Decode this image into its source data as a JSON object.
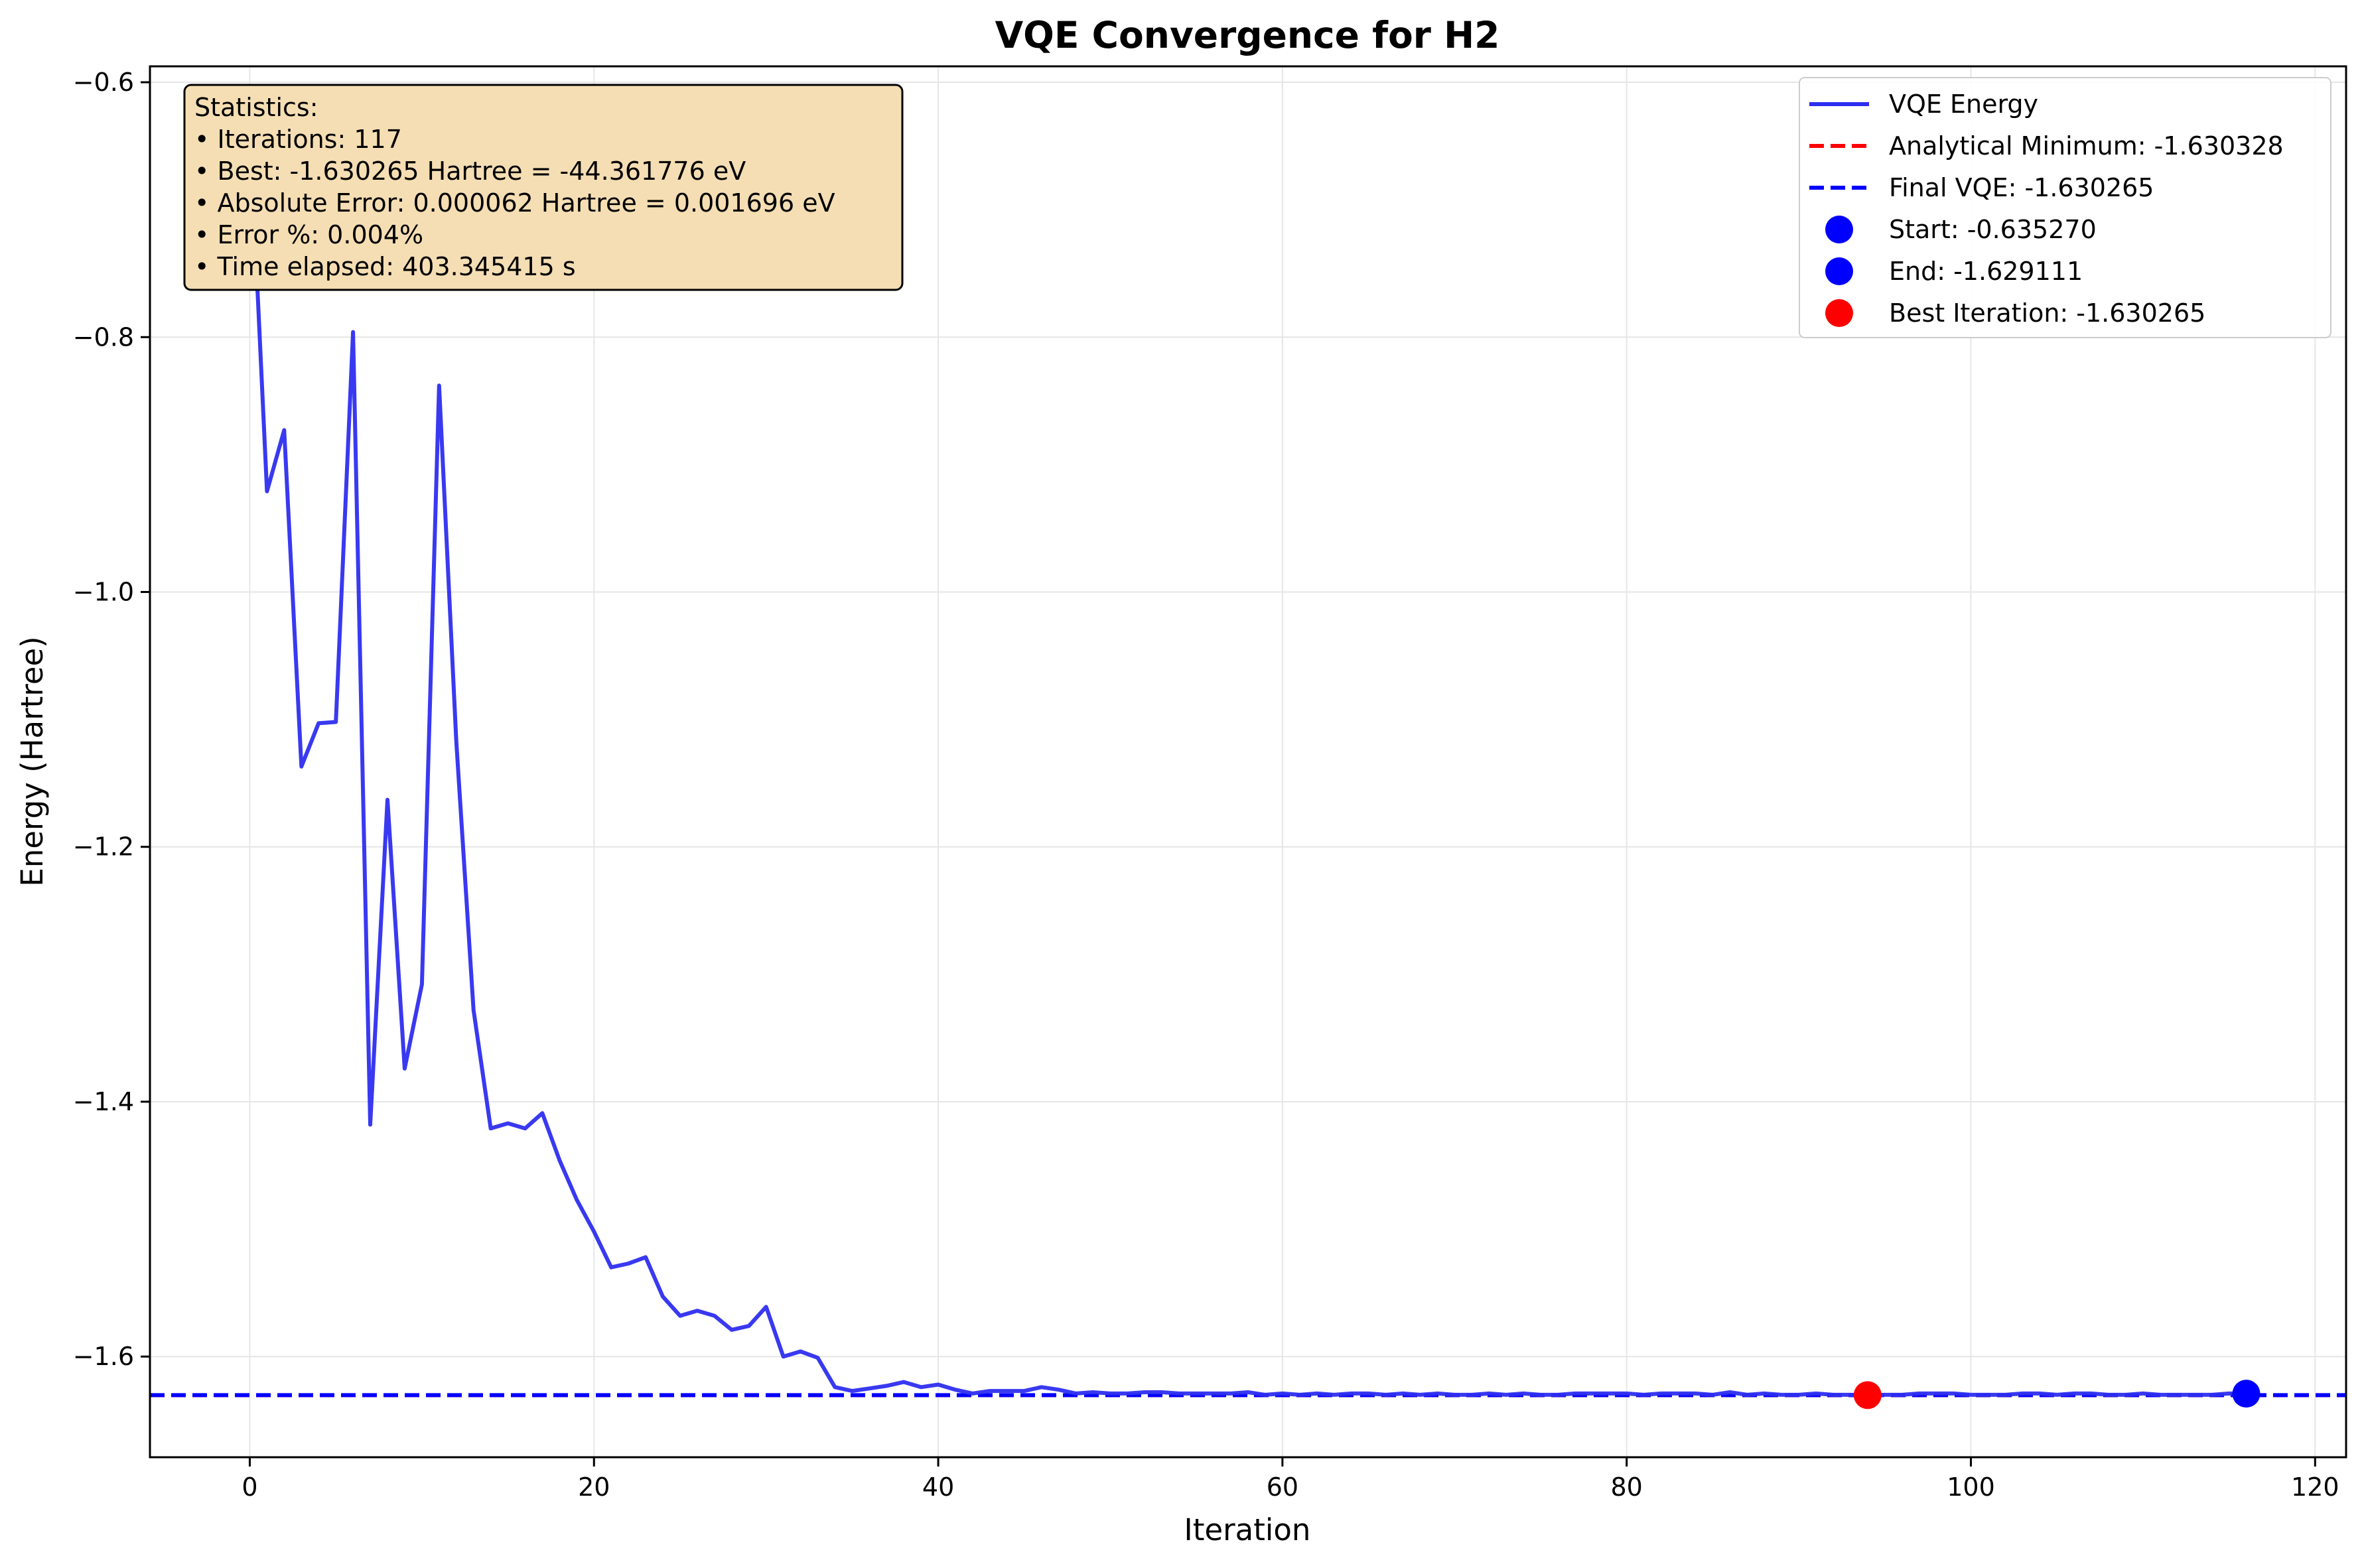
{
  "chart_data": {
    "type": "line",
    "title": "VQE Convergence for H2",
    "xlabel": "Iteration",
    "ylabel": "Energy (Hartree)",
    "xlim": [
      -5.8,
      121.8
    ],
    "ylim": [
      -1.679,
      -0.5875
    ],
    "xticks": [
      0,
      20,
      40,
      60,
      80,
      100,
      120
    ],
    "yticks": [
      -1.6,
      -1.4,
      -1.2,
      -1.0,
      -0.8,
      -0.6
    ],
    "xtick_labels": [
      "0",
      "20",
      "40",
      "60",
      "80",
      "100",
      "120"
    ],
    "ytick_labels": [
      "−1.6",
      "−1.4",
      "−1.2",
      "−1.0",
      "−0.8",
      "−0.6"
    ],
    "grid": true,
    "legend_position": "top-right",
    "series": [
      {
        "name": "VQE Energy",
        "color": "#2e2ef0",
        "style": "solid",
        "x": [
          0,
          1,
          2,
          3,
          4,
          5,
          6,
          7,
          8,
          9,
          10,
          11,
          12,
          13,
          14,
          15,
          16,
          17,
          18,
          19,
          20,
          21,
          22,
          23,
          24,
          25,
          26,
          27,
          28,
          29,
          30,
          31,
          32,
          33,
          34,
          35,
          36,
          37,
          38,
          39,
          40,
          41,
          42,
          43,
          44,
          45,
          46,
          47,
          48,
          49,
          50,
          51,
          52,
          53,
          54,
          55,
          56,
          57,
          58,
          59,
          60,
          61,
          62,
          63,
          64,
          65,
          66,
          67,
          68,
          69,
          70,
          71,
          72,
          73,
          74,
          75,
          76,
          77,
          78,
          79,
          80,
          81,
          82,
          83,
          84,
          85,
          86,
          87,
          88,
          89,
          90,
          91,
          92,
          93,
          94,
          95,
          96,
          97,
          98,
          99,
          100,
          101,
          102,
          103,
          104,
          105,
          106,
          107,
          108,
          109,
          110,
          111,
          112,
          113,
          114,
          115,
          116
        ],
        "y": [
          -0.635,
          -0.921,
          -0.873,
          -1.137,
          -1.103,
          -1.102,
          -0.796,
          -1.418,
          -1.163,
          -1.374,
          -1.308,
          -0.838,
          -1.117,
          -1.328,
          -1.421,
          -1.417,
          -1.421,
          -1.409,
          -1.446,
          -1.477,
          -1.502,
          -1.53,
          -1.527,
          -1.522,
          -1.553,
          -1.568,
          -1.564,
          -1.568,
          -1.579,
          -1.576,
          -1.561,
          -1.6,
          -1.596,
          -1.601,
          -1.624,
          -1.627,
          -1.625,
          -1.623,
          -1.62,
          -1.624,
          -1.622,
          -1.626,
          -1.629,
          -1.627,
          -1.627,
          -1.627,
          -1.624,
          -1.626,
          -1.629,
          -1.628,
          -1.629,
          -1.629,
          -1.628,
          -1.628,
          -1.629,
          -1.629,
          -1.629,
          -1.629,
          -1.628,
          -1.63,
          -1.629,
          -1.63,
          -1.629,
          -1.63,
          -1.629,
          -1.629,
          -1.63,
          -1.629,
          -1.63,
          -1.629,
          -1.63,
          -1.63,
          -1.629,
          -1.63,
          -1.629,
          -1.63,
          -1.63,
          -1.629,
          -1.629,
          -1.629,
          -1.629,
          -1.63,
          -1.629,
          -1.629,
          -1.629,
          -1.63,
          -1.628,
          -1.63,
          -1.629,
          -1.63,
          -1.63,
          -1.629,
          -1.63,
          -1.63,
          -1.630265,
          -1.63,
          -1.63,
          -1.629,
          -1.629,
          -1.629,
          -1.63,
          -1.63,
          -1.63,
          -1.629,
          -1.629,
          -1.63,
          -1.629,
          -1.629,
          -1.63,
          -1.63,
          -1.629,
          -1.63,
          -1.63,
          -1.63,
          -1.63,
          -1.629,
          -1.629111
        ]
      },
      {
        "name": "Analytical Minimum: -1.630328",
        "color": "#ff0000",
        "style": "dashed",
        "y": -1.630328
      },
      {
        "name": "Final VQE: -1.630265",
        "color": "#0000ff",
        "style": "dashed",
        "y": -1.630265
      }
    ],
    "markers": [
      {
        "name": "Start: -0.635270",
        "x": 0,
        "y": -0.63527,
        "color": "#0000ff",
        "opacity": 0.3
      },
      {
        "name": "End: -1.629111",
        "x": 116,
        "y": -1.629111,
        "color": "#0000ff",
        "opacity": 1
      },
      {
        "name": "Best Iteration: -1.630265",
        "x": 94,
        "y": -1.630265,
        "color": "#ff0000",
        "opacity": 1
      }
    ],
    "annotation": {
      "lines": [
        "Statistics:",
        "• Iterations: 117",
        "• Best: -1.630265 Hartree = -44.361776 eV",
        "• Absolute Error: 0.000062 Hartree = 0.001696 eV",
        "• Error %: 0.004%",
        "• Time elapsed: 403.345415 s"
      ],
      "background": "#f5deb3"
    }
  }
}
